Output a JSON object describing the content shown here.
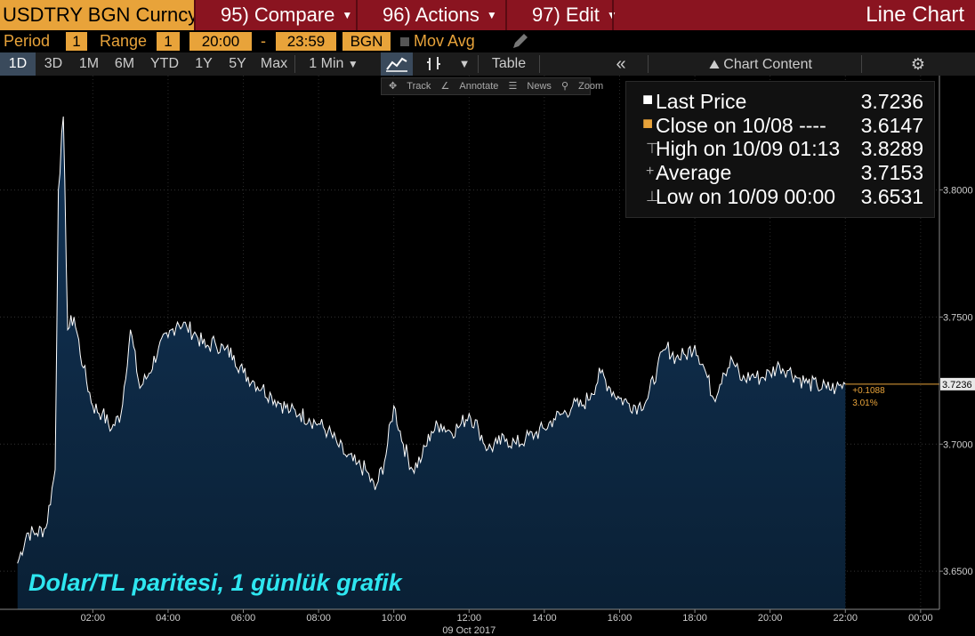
{
  "menubar": {
    "ticker": "USDTRY BGN Curncy",
    "compare": "95) Compare",
    "actions": "96) Actions",
    "edit": "97) Edit",
    "chart_type": "Line Chart"
  },
  "period_row": {
    "period_label": "Period",
    "period_value": "1",
    "range_label": "Range",
    "range_value": "1",
    "start_time": "20:00",
    "dash": "-",
    "end_time": "23:59",
    "source": "BGN",
    "mov_avg": "Mov Avg"
  },
  "toolbar": {
    "ranges": [
      "1D",
      "3D",
      "1M",
      "6M",
      "YTD",
      "1Y",
      "5Y",
      "Max"
    ],
    "interval": "1 Min",
    "table": "Table",
    "chart_content": "Chart Content"
  },
  "chart_tools": {
    "track": "Track",
    "annotate": "Annotate",
    "news": "News",
    "zoom": "Zoom"
  },
  "legend": [
    {
      "label": "Last Price",
      "value": "3.7236",
      "symbol": "white-square"
    },
    {
      "label": "Close on 10/08 ----",
      "value": "3.6147",
      "symbol": "orange-square"
    },
    {
      "label": "High on 10/09 01:13",
      "value": "3.8289",
      "symbol": "high-marker"
    },
    {
      "label": "Average",
      "value": "3.7153",
      "symbol": "average-marker"
    },
    {
      "label": "Low on 10/09 00:00",
      "value": "3.6531",
      "symbol": "low-marker"
    }
  ],
  "last_price_tag": "3.7236",
  "change_label": "+0.1088",
  "change_pct": "3.01%",
  "caption": "Dolar/TL paritesi, 1 günlük grafik",
  "colors": {
    "accent": "#e8a33a",
    "menubar": "#8a1420",
    "fill": "#0d2a48",
    "caption": "#2ee6f0"
  },
  "chart_data": {
    "type": "area",
    "x_date_label": "09 Oct 2017",
    "xticks": [
      "02:00",
      "04:00",
      "06:00",
      "08:00",
      "10:00",
      "12:00",
      "14:00",
      "16:00",
      "18:00",
      "20:00",
      "22:00",
      "00:00"
    ],
    "yticks": [
      "3.6500",
      "3.7000",
      "3.7500",
      "3.8000"
    ],
    "ylim": [
      3.635,
      3.845
    ],
    "series": [
      {
        "x": [
          "00:00",
          "00:15",
          "00:30",
          "00:45",
          "01:00",
          "01:05",
          "01:13",
          "01:20",
          "01:30",
          "01:45",
          "02:00",
          "02:15",
          "02:30",
          "02:45",
          "03:00",
          "03:15",
          "03:30",
          "03:45",
          "04:00",
          "04:15",
          "04:30",
          "04:45",
          "05:00",
          "05:15",
          "05:30",
          "05:45",
          "06:00",
          "06:15",
          "06:30",
          "06:45",
          "07:00",
          "07:15",
          "07:30",
          "07:45",
          "08:00",
          "08:15",
          "08:30",
          "08:45",
          "09:00",
          "09:15",
          "09:30",
          "09:45",
          "10:00",
          "10:15",
          "10:30",
          "10:45",
          "11:00",
          "11:15",
          "11:30",
          "11:45",
          "12:00",
          "12:15",
          "12:30",
          "12:45",
          "13:00",
          "13:15",
          "13:30",
          "13:45",
          "14:00",
          "14:15",
          "14:30",
          "14:45",
          "15:00",
          "15:15",
          "15:30",
          "15:45",
          "16:00",
          "16:15",
          "16:30",
          "16:45",
          "17:00",
          "17:15",
          "17:30",
          "17:45",
          "18:00",
          "18:15",
          "18:30",
          "18:45",
          "19:00",
          "19:15",
          "19:30",
          "19:45",
          "20:00",
          "20:15",
          "20:30",
          "20:45",
          "21:00",
          "21:15",
          "21:30",
          "21:45",
          "22:00"
        ],
        "y": [
          3.6531,
          3.665,
          3.665,
          3.667,
          3.69,
          3.8,
          3.8289,
          3.745,
          3.75,
          3.73,
          3.715,
          3.712,
          3.706,
          3.712,
          3.745,
          3.722,
          3.728,
          3.738,
          3.742,
          3.748,
          3.746,
          3.743,
          3.738,
          3.74,
          3.737,
          3.735,
          3.728,
          3.725,
          3.722,
          3.719,
          3.716,
          3.713,
          3.712,
          3.71,
          3.708,
          3.705,
          3.7,
          3.695,
          3.692,
          3.69,
          3.682,
          3.693,
          3.715,
          3.7,
          3.69,
          3.695,
          3.705,
          3.708,
          3.705,
          3.707,
          3.712,
          3.706,
          3.698,
          3.7,
          3.702,
          3.7,
          3.702,
          3.704,
          3.706,
          3.71,
          3.712,
          3.715,
          3.715,
          3.72,
          3.728,
          3.722,
          3.718,
          3.716,
          3.715,
          3.718,
          3.73,
          3.738,
          3.734,
          3.735,
          3.739,
          3.73,
          3.718,
          3.728,
          3.733,
          3.725,
          3.727,
          3.726,
          3.728,
          3.731,
          3.729,
          3.726,
          3.724,
          3.723,
          3.722,
          3.722,
          3.7236
        ]
      }
    ]
  }
}
